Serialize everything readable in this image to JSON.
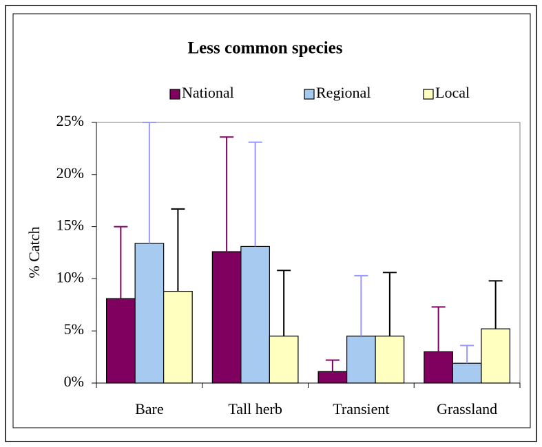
{
  "chart_data": {
    "type": "bar",
    "title": "Less common species",
    "ylabel": "% Catch",
    "categories": [
      "Bare",
      "Tall herb",
      "Transient",
      "Grassland"
    ],
    "series": [
      {
        "name": "National",
        "color": "#800060",
        "error_color": "#800060",
        "values": [
          8.1,
          12.6,
          1.1,
          3.0
        ],
        "errors": [
          6.9,
          11.0,
          1.1,
          4.3
        ]
      },
      {
        "name": "Regional",
        "color": "#a6caf0",
        "error_color": "#9999ff",
        "values": [
          13.4,
          13.1,
          4.5,
          1.9
        ],
        "errors": [
          11.6,
          10.0,
          5.8,
          1.7
        ]
      },
      {
        "name": "Local",
        "color": "#ffffc0",
        "error_color": "#000000",
        "values": [
          8.8,
          4.5,
          4.5,
          5.2
        ],
        "errors": [
          7.9,
          6.3,
          6.1,
          4.6
        ]
      }
    ],
    "ylim": [
      0,
      25
    ],
    "yticks": [
      {
        "value": 0,
        "label": "0%"
      },
      {
        "value": 5,
        "label": "5%"
      },
      {
        "value": 10,
        "label": "10%"
      },
      {
        "value": 15,
        "label": "15%"
      },
      {
        "value": 20,
        "label": "20%"
      },
      {
        "value": 25,
        "label": "25%"
      }
    ],
    "legend": "top",
    "grid": false
  }
}
